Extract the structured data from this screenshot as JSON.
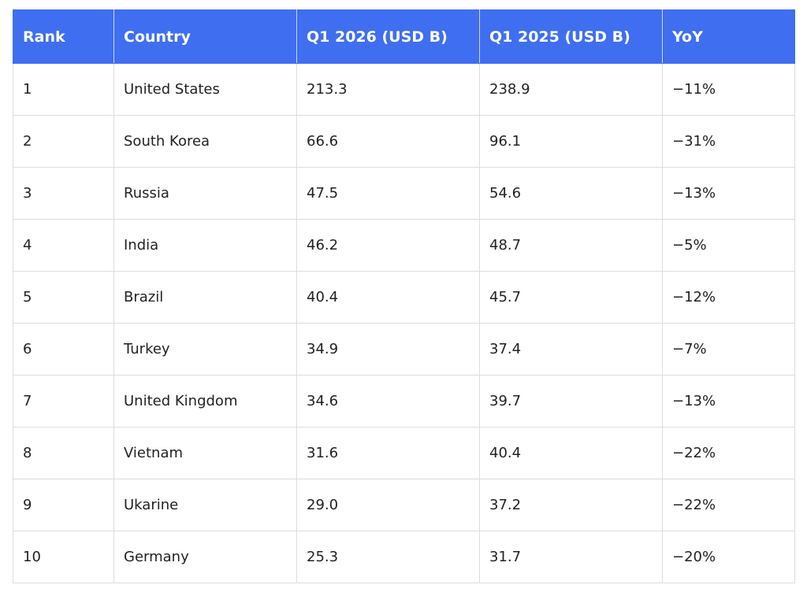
{
  "table": {
    "header": [
      "Rank",
      "Country",
      "Q1 2026 (USD B)",
      "Q1 2025 (USD B)",
      "YoY"
    ],
    "rows": [
      [
        "1",
        "United States",
        "213.3",
        "238.9",
        "−11%"
      ],
      [
        "2",
        "South Korea",
        "66.6",
        "96.1",
        "−31%"
      ],
      [
        "3",
        "Russia",
        "47.5",
        "54.6",
        "−13%"
      ],
      [
        "4",
        "India",
        "46.2",
        "48.7",
        "−5%"
      ],
      [
        "5",
        "Brazil",
        "40.4",
        "45.7",
        "−12%"
      ],
      [
        "6",
        "Turkey",
        "34.9",
        "37.4",
        "−7%"
      ],
      [
        "7",
        "United Kingdom",
        "34.6",
        "39.7",
        "−13%"
      ],
      [
        "8",
        "Vietnam",
        "31.6",
        "40.4",
        "−22%"
      ],
      [
        "9",
        "Ukarine",
        "29.0",
        "37.2",
        "−22%"
      ],
      [
        "10",
        "Germany",
        "25.3",
        "31.7",
        "−20%"
      ]
    ]
  }
}
